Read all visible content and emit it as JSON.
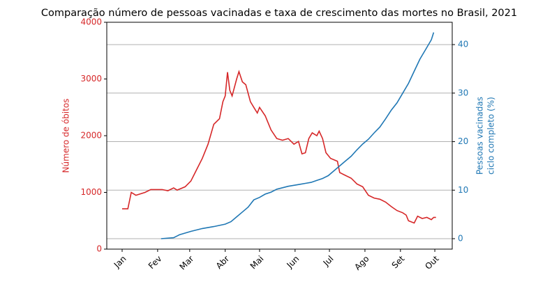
{
  "chart_data": {
    "type": "line",
    "title": "Comparação número de pessoas vacinadas e taxa de crescimento das mortes no Brasil, 2021",
    "ylabel": "Número de óbitos",
    "y2label": [
      "Pessoas vacinadas",
      "ciclo completo (%)"
    ],
    "xlim": [
      -13.4,
      288.2
    ],
    "xticks": [
      {
        "value": 0,
        "label": "Jan"
      },
      {
        "value": 31,
        "label": "Fev"
      },
      {
        "value": 59,
        "label": "Mar"
      },
      {
        "value": 90,
        "label": "Abr"
      },
      {
        "value": 120,
        "label": "Mai"
      },
      {
        "value": 151,
        "label": "Jun"
      },
      {
        "value": 181,
        "label": "Jul"
      },
      {
        "value": 212,
        "label": "Ago"
      },
      {
        "value": 243,
        "label": "Set"
      },
      {
        "value": 273,
        "label": "Out"
      }
    ],
    "ylim": [
      0,
      4000
    ],
    "yticks": [
      0,
      1000,
      2000,
      3000,
      4000
    ],
    "y2lim": [
      -2.15,
      44.6
    ],
    "y2ticks": [
      0,
      10,
      20,
      30,
      40
    ],
    "grid": "y2",
    "series": [
      {
        "color": "#d62728",
        "axis": "y",
        "x": [
          0,
          5,
          8,
          12,
          20,
          25,
          35,
          40,
          45,
          48,
          55,
          60,
          65,
          70,
          75,
          80,
          85,
          88,
          90,
          92,
          94,
          96,
          100,
          102,
          105,
          108,
          112,
          115,
          118,
          120,
          125,
          130,
          135,
          140,
          145,
          150,
          154,
          157,
          160,
          163,
          166,
          170,
          172,
          175,
          178,
          182,
          188,
          190,
          195,
          200,
          205,
          210,
          215,
          220,
          225,
          230,
          235,
          240,
          245,
          248,
          250,
          255,
          258,
          262,
          266,
          270,
          272,
          274
        ],
        "values": [
          710,
          710,
          1000,
          950,
          1000,
          1050,
          1050,
          1030,
          1080,
          1040,
          1100,
          1200,
          1400,
          1600,
          1850,
          2200,
          2300,
          2600,
          2700,
          3120,
          2800,
          2700,
          3000,
          3130,
          2950,
          2900,
          2600,
          2500,
          2400,
          2500,
          2350,
          2100,
          1950,
          1920,
          1950,
          1850,
          1900,
          1680,
          1700,
          1950,
          2050,
          2000,
          2080,
          1950,
          1700,
          1600,
          1550,
          1350,
          1300,
          1250,
          1150,
          1100,
          950,
          900,
          880,
          830,
          750,
          680,
          640,
          600,
          500,
          460,
          580,
          540,
          560,
          520,
          560,
          560
        ]
      },
      {
        "color": "#1f77b4",
        "axis": "y2",
        "x": [
          34,
          45,
          50,
          60,
          70,
          80,
          90,
          95,
          100,
          105,
          110,
          115,
          120,
          125,
          130,
          135,
          140,
          145,
          150,
          155,
          160,
          165,
          170,
          175,
          180,
          185,
          190,
          195,
          200,
          205,
          210,
          215,
          220,
          225,
          230,
          235,
          240,
          245,
          250,
          255,
          260,
          265,
          270,
          272
        ],
        "values": [
          0,
          0.2,
          0.8,
          1.5,
          2.1,
          2.5,
          3,
          3.5,
          4.5,
          5.5,
          6.5,
          8,
          8.5,
          9.2,
          9.6,
          10.2,
          10.5,
          10.8,
          11,
          11.2,
          11.4,
          11.6,
          12,
          12.4,
          13,
          14,
          15,
          16,
          17,
          18.3,
          19.5,
          20.5,
          21.8,
          23,
          24.7,
          26.5,
          28,
          30,
          32,
          34.5,
          37,
          39,
          41,
          42.5
        ]
      }
    ]
  }
}
